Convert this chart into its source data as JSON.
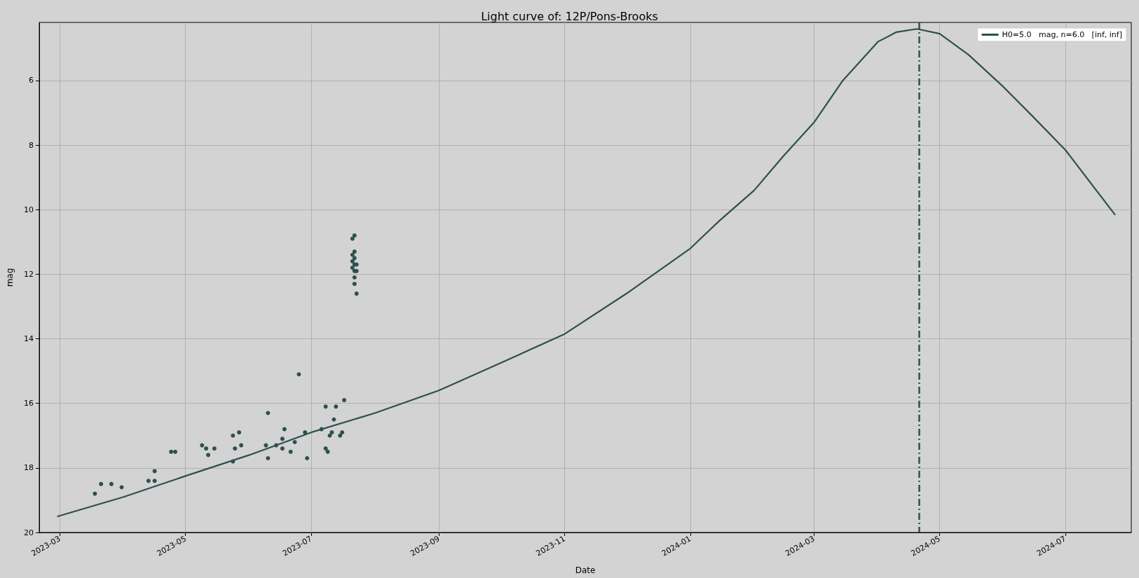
{
  "chart_data": {
    "type": "line",
    "title": "Light curve of: 12P/Pons-Brooks",
    "xlabel": "Date",
    "ylabel": "mag",
    "xlim": [
      "2023-02-19",
      "2024-08-02"
    ],
    "xticks": [
      "2023-03",
      "2023-05",
      "2023-07",
      "2023-09",
      "2023-11",
      "2024-01",
      "2024-03",
      "2024-05",
      "2024-07"
    ],
    "ylim": [
      20,
      4.2
    ],
    "yticks": [
      6,
      8,
      10,
      12,
      14,
      16,
      18,
      20
    ],
    "grid": true,
    "legend": "top right",
    "ref_lines": [
      {
        "axis": "x",
        "value": "2024-04-21",
        "color": "#2f4f4f",
        "line_style": "dashed"
      }
    ],
    "series": [
      {
        "name": "H0=5.0   mag, n=6.0   [inf, inf]",
        "color": "#2f4f4f",
        "marker": "none",
        "line_style": "solid",
        "x": [
          "2023-02-28",
          "2023-04-01",
          "2023-05-01",
          "2023-06-01",
          "2023-07-01",
          "2023-08-01",
          "2023-09-01",
          "2023-10-01",
          "2023-11-01",
          "2023-12-01",
          "2024-01-01",
          "2024-01-15",
          "2024-02-01",
          "2024-02-15",
          "2024-03-01",
          "2024-03-15",
          "2024-04-01",
          "2024-04-10",
          "2024-04-20",
          "2024-05-01",
          "2024-05-15",
          "2024-06-01",
          "2024-06-15",
          "2024-07-01",
          "2024-07-25"
        ],
        "values": [
          19.5,
          18.9,
          18.25,
          17.6,
          16.9,
          16.3,
          15.6,
          14.75,
          13.85,
          12.6,
          11.2,
          10.35,
          9.4,
          8.35,
          7.3,
          6.0,
          4.8,
          4.5,
          4.4,
          4.55,
          5.2,
          6.2,
          7.1,
          8.15,
          10.15
        ]
      },
      {
        "type": "scatter",
        "color": "#2f4f4f",
        "marker": "circle",
        "x": [
          "2023-03-18",
          "2023-03-21",
          "2023-03-26",
          "2023-03-31",
          "2023-04-13",
          "2023-04-16",
          "2023-04-16",
          "2023-04-24",
          "2023-04-26",
          "2023-05-09",
          "2023-05-11",
          "2023-05-12",
          "2023-05-15",
          "2023-05-24",
          "2023-05-24",
          "2023-05-25",
          "2023-05-27",
          "2023-05-28",
          "2023-06-09",
          "2023-06-10",
          "2023-06-10",
          "2023-06-14",
          "2023-06-17",
          "2023-06-17",
          "2023-06-18",
          "2023-06-21",
          "2023-06-23",
          "2023-06-25",
          "2023-06-28",
          "2023-06-29",
          "2023-07-06",
          "2023-07-08",
          "2023-07-08",
          "2023-07-09",
          "2023-07-10",
          "2023-07-11",
          "2023-07-12",
          "2023-07-13",
          "2023-07-15",
          "2023-07-16",
          "2023-07-17",
          "2023-07-21",
          "2023-07-22",
          "2023-07-22",
          "2023-07-21",
          "2023-07-22",
          "2023-07-21",
          "2023-07-22",
          "2023-07-23",
          "2023-07-21",
          "2023-07-22",
          "2023-07-23",
          "2023-07-22",
          "2023-07-22",
          "2023-07-23"
        ],
        "values": [
          18.8,
          18.5,
          18.5,
          18.6,
          18.4,
          18.1,
          18.4,
          17.5,
          17.5,
          17.3,
          17.4,
          17.6,
          17.4,
          17.0,
          17.8,
          17.4,
          16.9,
          17.3,
          17.3,
          16.3,
          17.7,
          17.3,
          17.4,
          17.1,
          16.8,
          17.5,
          17.2,
          15.1,
          16.9,
          17.7,
          16.8,
          16.1,
          17.4,
          17.5,
          17.0,
          16.9,
          16.5,
          16.1,
          17.0,
          16.9,
          15.9,
          10.9,
          10.8,
          11.3,
          11.4,
          11.5,
          11.6,
          11.7,
          11.7,
          11.8,
          11.9,
          11.9,
          12.1,
          12.3,
          12.6
        ]
      }
    ]
  }
}
